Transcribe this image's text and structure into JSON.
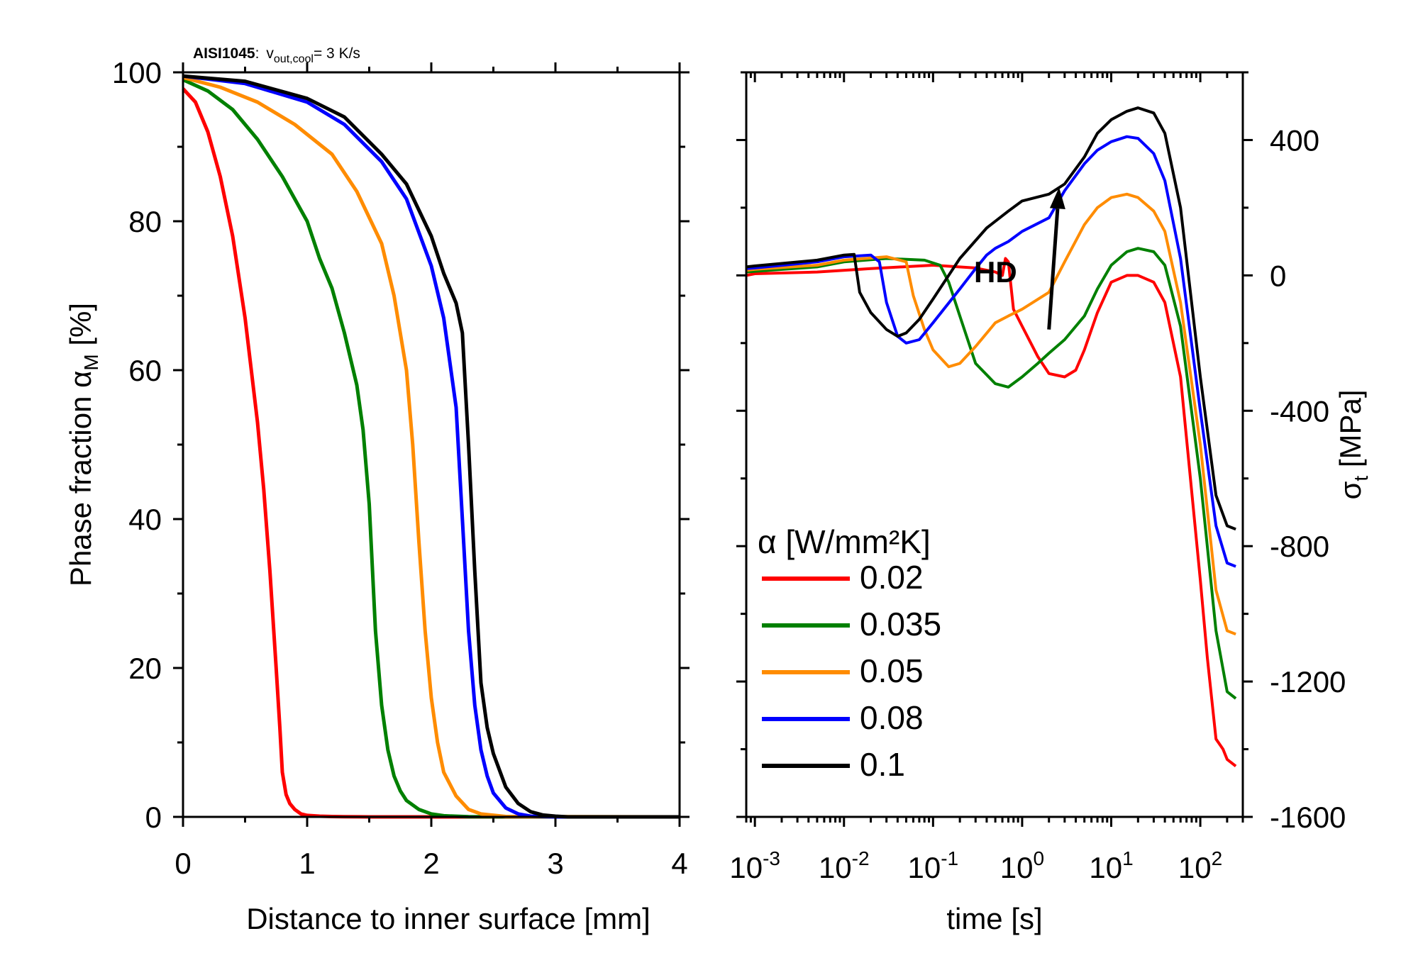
{
  "chart_data": [
    {
      "type": "line",
      "id": "left",
      "annotation": {
        "material": "AISI1045",
        "separator": ":",
        "v_base": "v",
        "v_sub": "out,cool",
        "v_rest": "= 3 K/s"
      },
      "xlabel": "Distance to inner surface [mm]",
      "ylabel": {
        "main": "Phase fraction α",
        "sub": "M",
        "unit": " [%]"
      },
      "xlim": [
        0,
        4
      ],
      "ylim": [
        0,
        100
      ],
      "xticks": [
        0,
        1,
        2,
        3,
        4
      ],
      "xticklabels": [
        "0",
        "1",
        "2",
        "3",
        "4"
      ],
      "yticks": [
        0,
        20,
        40,
        60,
        80,
        100
      ],
      "yticklabels": [
        "0",
        "20",
        "40",
        "60",
        "80",
        "100"
      ],
      "series": [
        {
          "name": "0.02",
          "color": "#ff0000",
          "x": [
            0,
            0.1,
            0.2,
            0.3,
            0.4,
            0.5,
            0.6,
            0.65,
            0.7,
            0.75,
            0.78,
            0.8,
            0.83,
            0.86,
            0.9,
            0.95,
            1.0,
            1.1,
            1.2,
            1.3,
            1.5,
            4.0
          ],
          "y": [
            97.8,
            96,
            92,
            86,
            78,
            67,
            53,
            44,
            33,
            20,
            12,
            6,
            3,
            1.8,
            1,
            0.4,
            0.2,
            0.1,
            0.05,
            0.02,
            0,
            0
          ]
        },
        {
          "name": "0.035",
          "color": "#008000",
          "x": [
            0,
            0.2,
            0.4,
            0.6,
            0.8,
            1.0,
            1.1,
            1.2,
            1.3,
            1.4,
            1.45,
            1.5,
            1.55,
            1.6,
            1.65,
            1.7,
            1.75,
            1.8,
            1.9,
            2.0,
            2.1,
            2.3,
            4.0
          ],
          "y": [
            99,
            97.5,
            95,
            91,
            86,
            80,
            75,
            71,
            65,
            58,
            52,
            42,
            25,
            15,
            9,
            5.5,
            3.5,
            2.2,
            1,
            0.4,
            0.15,
            0.02,
            0
          ]
        },
        {
          "name": "0.05",
          "color": "#ff8c00",
          "x": [
            0,
            0.3,
            0.6,
            0.9,
            1.2,
            1.4,
            1.6,
            1.7,
            1.8,
            1.85,
            1.9,
            1.95,
            2.0,
            2.05,
            2.1,
            2.2,
            2.3,
            2.4,
            2.6,
            4.0
          ],
          "y": [
            99.3,
            98,
            96,
            93,
            89,
            84,
            77,
            70,
            60,
            50,
            37,
            25,
            16,
            10,
            6,
            2.8,
            1,
            0.4,
            0.05,
            0
          ]
        },
        {
          "name": "0.08",
          "color": "#0000ff",
          "x": [
            0,
            0.5,
            1.0,
            1.3,
            1.6,
            1.8,
            2.0,
            2.1,
            2.2,
            2.25,
            2.3,
            2.35,
            2.4,
            2.45,
            2.5,
            2.6,
            2.7,
            2.8,
            3.0,
            4.0
          ],
          "y": [
            99.5,
            98.5,
            96,
            93,
            88,
            83,
            74,
            67,
            55,
            40,
            25,
            15,
            9,
            5.5,
            3.2,
            1.2,
            0.4,
            0.1,
            0,
            0
          ]
        },
        {
          "name": "0.1",
          "color": "#000000",
          "x": [
            0,
            0.5,
            1.0,
            1.3,
            1.6,
            1.8,
            2.0,
            2.1,
            2.2,
            2.25,
            2.3,
            2.35,
            2.4,
            2.45,
            2.5,
            2.6,
            2.7,
            2.8,
            2.9,
            3.0,
            3.1,
            4.0
          ],
          "y": [
            99.5,
            98.8,
            96.5,
            94,
            89,
            85,
            78,
            73,
            69,
            65,
            50,
            33,
            18,
            12,
            8.5,
            4,
            1.8,
            0.7,
            0.25,
            0.1,
            0,
            0
          ]
        }
      ]
    },
    {
      "type": "line",
      "id": "right",
      "xscale": "log",
      "xlabel": "time [s]",
      "ylabel": {
        "main": "σ",
        "sub": "t",
        "unit": " [MPa]"
      },
      "xlim": [
        0.0008,
        300
      ],
      "ylim": [
        -1600,
        600
      ],
      "xticks": [
        0.001,
        0.01,
        0.1,
        1,
        10,
        100
      ],
      "xticklabels": [
        {
          "base": "10",
          "exp": "-3"
        },
        {
          "base": "10",
          "exp": "-2"
        },
        {
          "base": "10",
          "exp": "-1"
        },
        {
          "base": "10",
          "exp": "0"
        },
        {
          "base": "10",
          "exp": "1"
        },
        {
          "base": "10",
          "exp": "2"
        }
      ],
      "yticks": [
        400,
        0,
        -400,
        -800,
        -1200,
        -1600
      ],
      "yticklabels": [
        "400",
        "0",
        "-400",
        "-800",
        "-1200",
        "-1600"
      ],
      "annotation": "HD",
      "arrow": {
        "from": [
          2,
          -160
        ],
        "to": [
          2.6,
          260
        ]
      },
      "legend": {
        "title": "α [W/mm²K]",
        "position": "lower-left"
      },
      "series": [
        {
          "name": "0.02",
          "color": "#ff0000",
          "x": [
            0.0008,
            0.001,
            0.005,
            0.02,
            0.1,
            0.3,
            0.5,
            0.6,
            0.65,
            0.7,
            0.8,
            1.0,
            1.5,
            2.0,
            3.0,
            4.0,
            5.0,
            7.0,
            10,
            15,
            20,
            30,
            40,
            60,
            100,
            120,
            150,
            180,
            200,
            250
          ],
          "y": [
            0,
            5,
            10,
            20,
            30,
            22,
            10,
            0,
            50,
            40,
            -100,
            -150,
            -240,
            -290,
            -300,
            -280,
            -220,
            -110,
            -20,
            0,
            0,
            -20,
            -80,
            -300,
            -900,
            -1130,
            -1370,
            -1400,
            -1430,
            -1450
          ]
        },
        {
          "name": "0.035",
          "color": "#008000",
          "x": [
            0.0008,
            0.001,
            0.005,
            0.01,
            0.03,
            0.08,
            0.12,
            0.15,
            0.2,
            0.3,
            0.5,
            0.7,
            1.0,
            1.5,
            2.0,
            3.0,
            5.0,
            7.0,
            10,
            15,
            20,
            30,
            40,
            60,
            100,
            150,
            200,
            250
          ],
          "y": [
            10,
            12,
            25,
            40,
            50,
            45,
            30,
            -20,
            -120,
            -260,
            -320,
            -330,
            -300,
            -260,
            -230,
            -190,
            -120,
            -40,
            30,
            70,
            80,
            70,
            30,
            -150,
            -600,
            -1050,
            -1230,
            -1250
          ]
        },
        {
          "name": "0.05",
          "color": "#ff8c00",
          "x": [
            0.0008,
            0.001,
            0.005,
            0.01,
            0.03,
            0.05,
            0.06,
            0.08,
            0.1,
            0.15,
            0.2,
            0.3,
            0.5,
            0.7,
            1.0,
            2.0,
            3.0,
            5.0,
            7.0,
            10,
            15,
            20,
            30,
            40,
            60,
            100,
            150,
            200,
            250
          ],
          "y": [
            15,
            18,
            30,
            45,
            55,
            40,
            -60,
            -160,
            -220,
            -270,
            -260,
            -210,
            -140,
            -120,
            -100,
            -50,
            40,
            150,
            200,
            230,
            240,
            230,
            190,
            130,
            -80,
            -500,
            -930,
            -1050,
            -1060
          ]
        },
        {
          "name": "0.08",
          "color": "#0000ff",
          "x": [
            0.0008,
            0.001,
            0.005,
            0.01,
            0.02,
            0.025,
            0.03,
            0.04,
            0.05,
            0.07,
            0.1,
            0.2,
            0.3,
            0.4,
            0.5,
            0.7,
            1.0,
            2.0,
            3.0,
            5.0,
            7.0,
            10,
            15,
            20,
            30,
            40,
            60,
            100,
            150,
            200,
            250
          ],
          "y": [
            20,
            22,
            40,
            55,
            60,
            40,
            -80,
            -180,
            -200,
            -190,
            -140,
            -40,
            20,
            60,
            80,
            100,
            130,
            170,
            250,
            330,
            370,
            395,
            410,
            405,
            360,
            280,
            50,
            -400,
            -740,
            -850,
            -860
          ]
        },
        {
          "name": "0.1",
          "color": "#000000",
          "x": [
            0.0008,
            0.001,
            0.005,
            0.01,
            0.013,
            0.015,
            0.02,
            0.03,
            0.04,
            0.05,
            0.07,
            0.1,
            0.2,
            0.4,
            0.7,
            1.0,
            2.0,
            3.0,
            5.0,
            7.0,
            10,
            15,
            20,
            30,
            40,
            60,
            100,
            150,
            200,
            250
          ],
          "y": [
            25,
            28,
            45,
            60,
            62,
            -50,
            -110,
            -160,
            -180,
            -170,
            -130,
            -70,
            50,
            140,
            190,
            220,
            240,
            270,
            350,
            420,
            460,
            485,
            495,
            480,
            420,
            200,
            -300,
            -650,
            -740,
            -750
          ]
        }
      ]
    }
  ]
}
